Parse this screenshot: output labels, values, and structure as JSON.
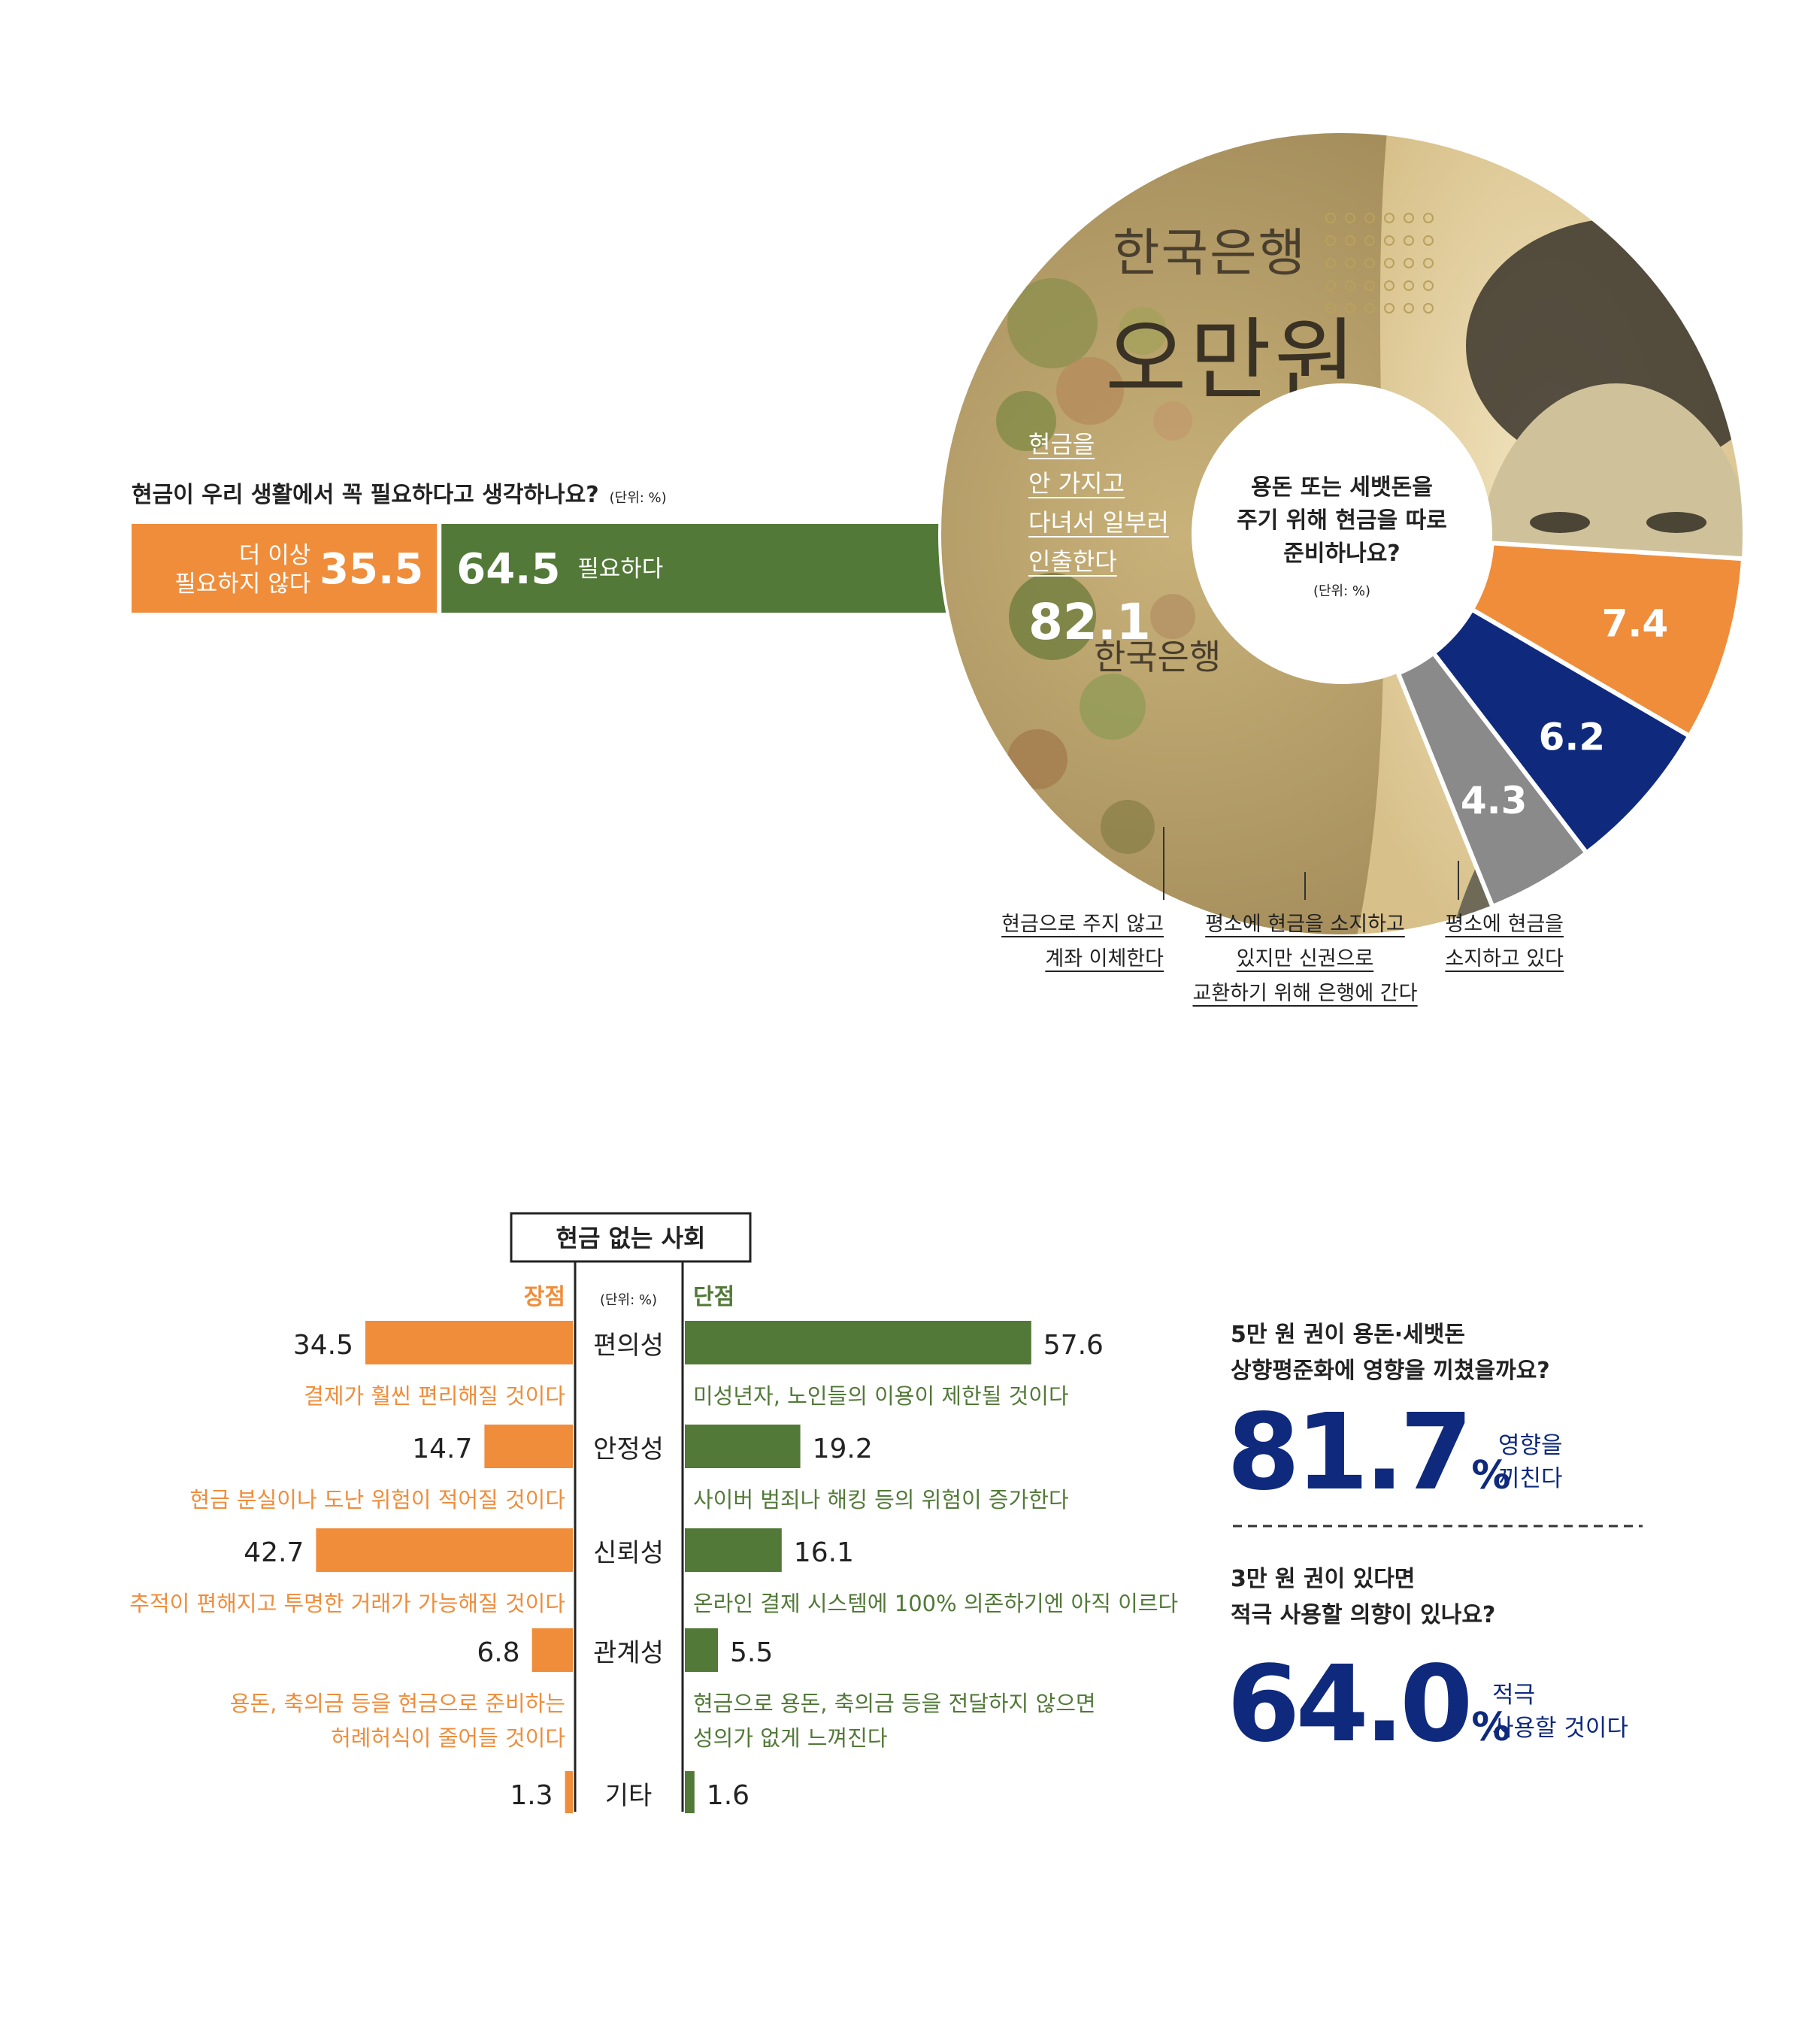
{
  "colors": {
    "orange": "#EF8D3B",
    "green": "#527938",
    "navy": "#0F2A7D",
    "gray": "#8A8A8A",
    "white": "#FFFFFF",
    "text": "#222222"
  },
  "chart_data": [
    {
      "type": "bar",
      "orientation": "horizontal-stacked",
      "title": "현금이 우리 생활에서 꼭 필요하다고 생각하나요?",
      "unit_note": "(단위: %)",
      "series": [
        {
          "name": "더 이상 필요하지 않다",
          "value": 35.5,
          "value_label": "35.5",
          "color": "orange"
        },
        {
          "name": "필요하다",
          "value": 64.5,
          "value_label": "64.5",
          "color": "green"
        }
      ]
    },
    {
      "type": "pie",
      "subtype": "donut",
      "title": "용돈 또는 세뱃돈을 주기 위해 현금을 따로 준비하나요?",
      "unit_note": "(단위: %)",
      "slices": [
        {
          "label": "현금을 안 가지고 다녀서 일부러 인출한다",
          "label_lines": [
            "현금을",
            "안 가지고",
            "다녀서 일부러",
            "인출한다"
          ],
          "value": 82.1,
          "value_label": "82.1",
          "fill": "banknote-image"
        },
        {
          "label": "현금으로 주지 않고 계좌 이체한다",
          "label_lines": [
            "현금으로 주지 않고",
            "계좌 이체한다"
          ],
          "value": 7.4,
          "value_label": "7.4",
          "color": "orange"
        },
        {
          "label": "평소에 현금을 소지하고 있지만 신권으로 교환하기 위해 은행에 간다",
          "label_lines": [
            "평소에 현금을 소지하고",
            "있지만 신권으로",
            "교환하기 위해 은행에 간다"
          ],
          "value": 6.2,
          "value_label": "6.2",
          "color": "navy"
        },
        {
          "label": "평소에 현금을 소지하고 있다",
          "label_lines": [
            "평소에 현금을",
            "소지하고 있다"
          ],
          "value": 4.3,
          "value_label": "4.3",
          "color": "gray"
        }
      ]
    },
    {
      "type": "bar",
      "orientation": "diverging",
      "title": "현금 없는 사회",
      "unit_note": "(단위: %)",
      "left_header": "장점",
      "right_header": "단점",
      "categories": [
        "편의성",
        "안정성",
        "신뢰성",
        "관계성",
        "기타"
      ],
      "series": [
        {
          "name": "장점",
          "color": "orange",
          "values": [
            34.5,
            14.7,
            42.7,
            6.8,
            1.3
          ],
          "value_labels": [
            "34.5",
            "14.7",
            "42.7",
            "6.8",
            "1.3"
          ],
          "descriptions": [
            [
              "결제가 훨씬 편리해질 것이다"
            ],
            [
              "현금 분실이나 도난 위험이 적어질 것이다"
            ],
            [
              "추적이 편해지고 투명한 거래가 가능해질 것이다"
            ],
            [
              "용돈, 축의금 등을 현금으로 준비하는",
              "허례허식이 줄어들 것이다"
            ],
            []
          ]
        },
        {
          "name": "단점",
          "color": "green",
          "values": [
            57.6,
            19.2,
            16.1,
            5.5,
            1.6
          ],
          "value_labels": [
            "57.6",
            "19.2",
            "16.1",
            "5.5",
            "1.6"
          ],
          "descriptions": [
            [
              "미성년자, 노인들의 이용이 제한될 것이다"
            ],
            [
              "사이버 범죄나 해킹 등의 위험이 증가한다"
            ],
            [
              "온라인 결제 시스템에 100% 의존하기엔 아직 이르다"
            ],
            [
              "현금으로 용돈, 축의금 등을 전달하지 않으면",
              "성의가 없게 느껴진다"
            ],
            []
          ]
        }
      ]
    }
  ],
  "banknote": {
    "top_text": "한국은행",
    "denomination": "오만원",
    "bottom_text": "한국은행"
  },
  "stats": [
    {
      "question_lines": [
        "5만 원 권이 용돈·세뱃돈",
        "상향평준화에 영향을 끼쳤을까요?"
      ],
      "number": "81.7",
      "unit": "%",
      "answer_lines": [
        "영향을",
        "끼친다"
      ]
    },
    {
      "question_lines": [
        "3만 원 권이 있다면",
        "적극 사용할 의향이 있나요?"
      ],
      "number": "64.0",
      "unit": "%",
      "answer_lines": [
        "적극",
        "사용할 것이다"
      ]
    }
  ]
}
